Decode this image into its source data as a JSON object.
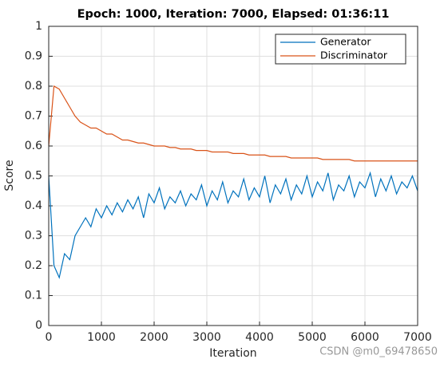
{
  "chart_data": {
    "type": "line",
    "title": "Epoch: 1000, Iteration: 7000, Elapsed: 01:36:11",
    "x_label": "Iteration",
    "y_label": "Score",
    "watermark": "CSDN @m0_69478650",
    "x": [
      0,
      100,
      200,
      300,
      400,
      500,
      600,
      700,
      800,
      900,
      1000,
      1100,
      1200,
      1300,
      1400,
      1500,
      1600,
      1700,
      1800,
      1900,
      2000,
      2100,
      2200,
      2300,
      2400,
      2500,
      2600,
      2700,
      2800,
      2900,
      3000,
      3100,
      3200,
      3300,
      3400,
      3500,
      3600,
      3700,
      3800,
      3900,
      4000,
      4100,
      4200,
      4300,
      4400,
      4500,
      4600,
      4700,
      4800,
      4900,
      5000,
      5100,
      5200,
      5300,
      5400,
      5500,
      5600,
      5700,
      5800,
      5900,
      6000,
      6100,
      6200,
      6300,
      6400,
      6500,
      6600,
      6700,
      6800,
      6900,
      7000
    ],
    "series": [
      {
        "name": "Generator",
        "color": "#0072bd",
        "values": [
          0.5,
          0.2,
          0.16,
          0.24,
          0.22,
          0.3,
          0.33,
          0.36,
          0.33,
          0.39,
          0.36,
          0.4,
          0.37,
          0.41,
          0.38,
          0.42,
          0.39,
          0.43,
          0.36,
          0.44,
          0.41,
          0.46,
          0.39,
          0.43,
          0.41,
          0.45,
          0.4,
          0.44,
          0.42,
          0.47,
          0.4,
          0.45,
          0.42,
          0.48,
          0.41,
          0.45,
          0.43,
          0.49,
          0.42,
          0.46,
          0.43,
          0.5,
          0.41,
          0.47,
          0.44,
          0.49,
          0.42,
          0.47,
          0.44,
          0.5,
          0.43,
          0.48,
          0.45,
          0.51,
          0.42,
          0.47,
          0.45,
          0.5,
          0.43,
          0.48,
          0.46,
          0.51,
          0.43,
          0.49,
          0.45,
          0.5,
          0.44,
          0.48,
          0.46,
          0.5,
          0.45
        ]
      },
      {
        "name": "Discriminator",
        "color": "#d95319",
        "values": [
          0.6,
          0.8,
          0.79,
          0.76,
          0.73,
          0.7,
          0.68,
          0.67,
          0.66,
          0.66,
          0.65,
          0.64,
          0.64,
          0.63,
          0.62,
          0.62,
          0.615,
          0.61,
          0.61,
          0.605,
          0.6,
          0.6,
          0.6,
          0.595,
          0.595,
          0.59,
          0.59,
          0.59,
          0.585,
          0.585,
          0.585,
          0.58,
          0.58,
          0.58,
          0.58,
          0.575,
          0.575,
          0.575,
          0.57,
          0.57,
          0.57,
          0.57,
          0.565,
          0.565,
          0.565,
          0.565,
          0.56,
          0.56,
          0.56,
          0.56,
          0.56,
          0.56,
          0.555,
          0.555,
          0.555,
          0.555,
          0.555,
          0.555,
          0.55,
          0.55,
          0.55,
          0.55,
          0.55,
          0.55,
          0.55,
          0.55,
          0.55,
          0.55,
          0.55,
          0.55,
          0.55
        ]
      }
    ],
    "xlim": [
      0,
      7000
    ],
    "xticks": [
      0,
      1000,
      2000,
      3000,
      4000,
      5000,
      6000,
      7000
    ],
    "ylim": [
      0,
      1
    ],
    "yticks": [
      0,
      0.1,
      0.2,
      0.3,
      0.4,
      0.5,
      0.6,
      0.7,
      0.8,
      0.9,
      1
    ],
    "grid": true,
    "legend_position": "northeast"
  }
}
